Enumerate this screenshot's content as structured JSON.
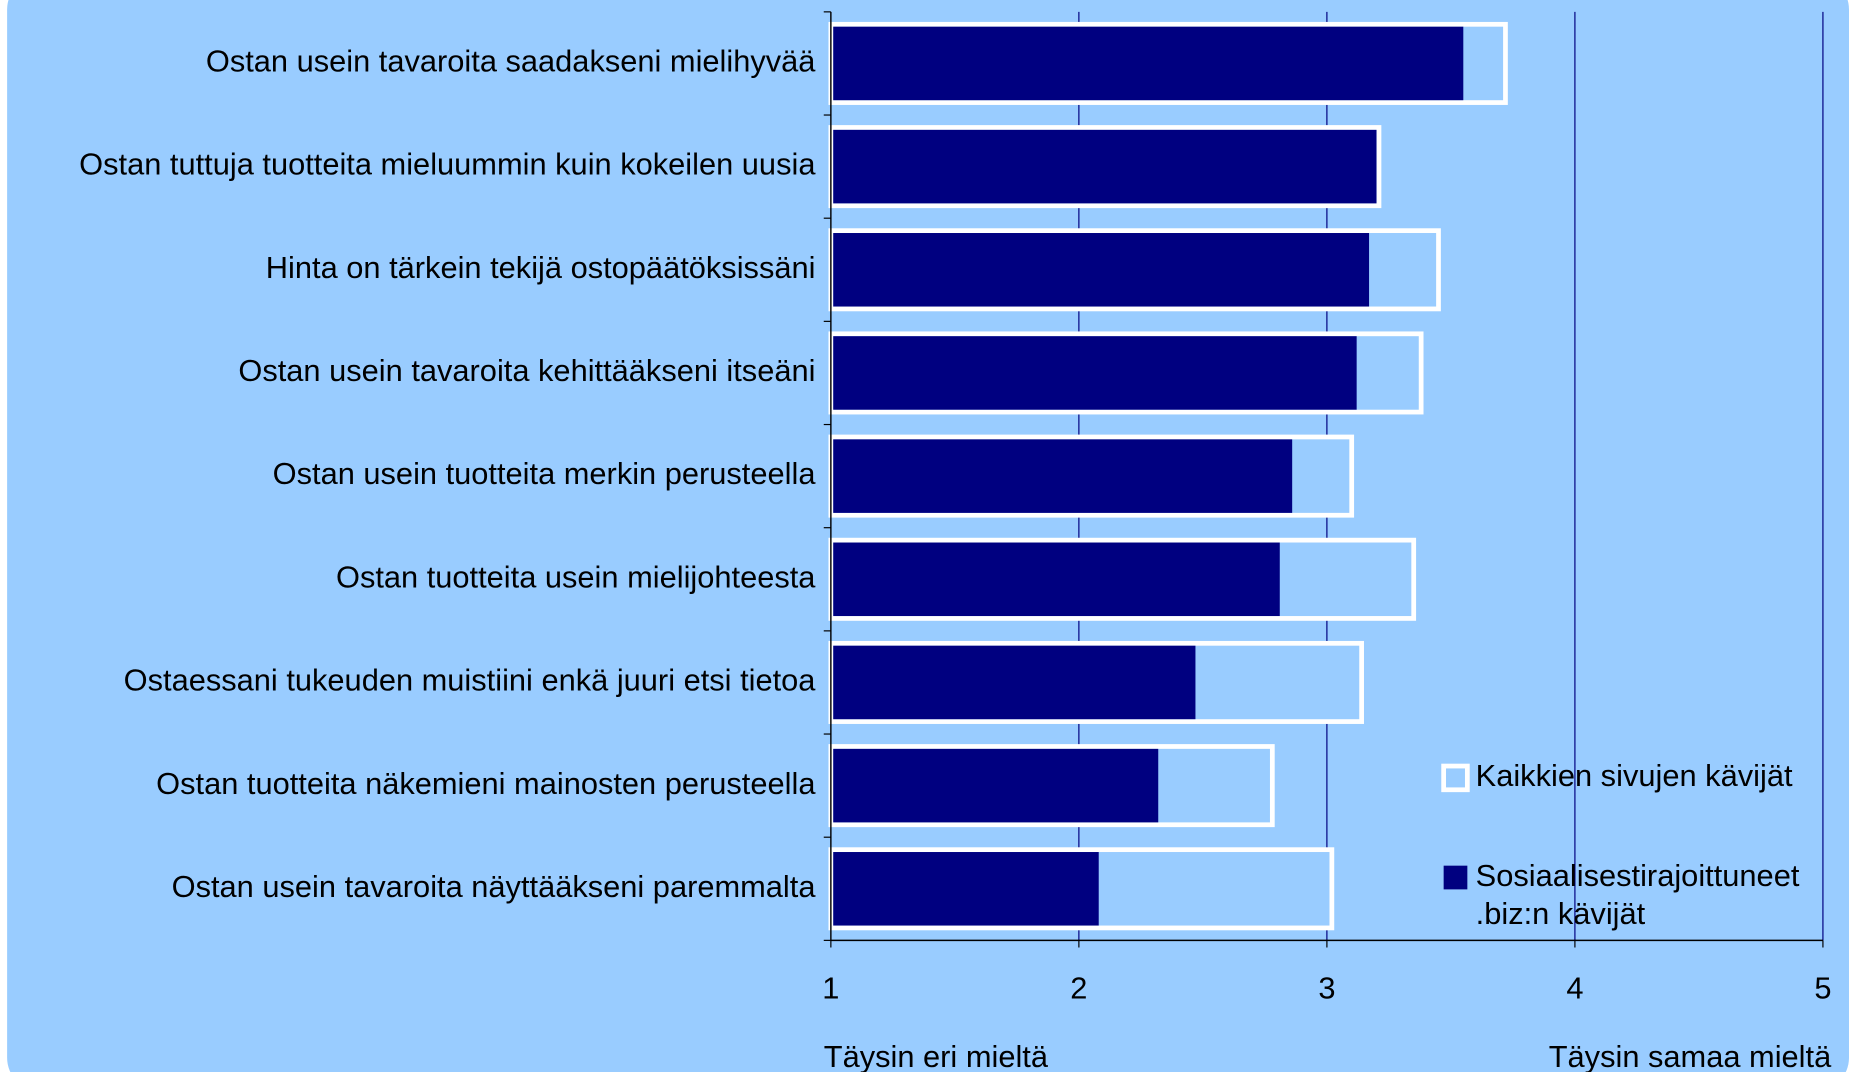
{
  "chart_data": {
    "type": "bar",
    "orientation": "horizontal",
    "categories": [
      "Ostan usein tavaroita saadakseni mielihyvää",
      "Ostan tuttuja tuotteita mieluummin kuin kokeilen uusia",
      "Hinta on tärkein tekijä ostopäätöksissäni",
      "Ostan usein tavaroita kehittääkseni itseäni",
      "Ostan usein tuotteita merkin perusteella",
      "Ostan tuotteita usein mielijohteesta",
      "Ostaessani tukeuden muistiini enkä juuri etsi tietoa",
      "Ostan tuotteita näkemieni mainosten perusteella",
      "Ostan usein tavaroita näyttääkseni paremmalta"
    ],
    "series": [
      {
        "name": "Kaikkien sivujen kävijät",
        "color": "#99ccff",
        "edge": "#ffffff",
        "values": [
          3.72,
          3.21,
          3.45,
          3.38,
          3.1,
          3.35,
          3.14,
          2.78,
          3.02
        ]
      },
      {
        "name": "Sosiaalisestirajoittuneet .biz:n kävijät",
        "color": "#000080",
        "values": [
          3.55,
          3.2,
          3.17,
          3.12,
          2.86,
          2.81,
          2.47,
          2.32,
          2.08
        ]
      }
    ],
    "xlim": [
      1,
      5
    ],
    "xticks": [
      1,
      2,
      3,
      4,
      5
    ],
    "grid": true,
    "x_end_labels": [
      "Täysin eri mieltä",
      "Täysin samaa mieltä"
    ],
    "legend": "lower right"
  }
}
